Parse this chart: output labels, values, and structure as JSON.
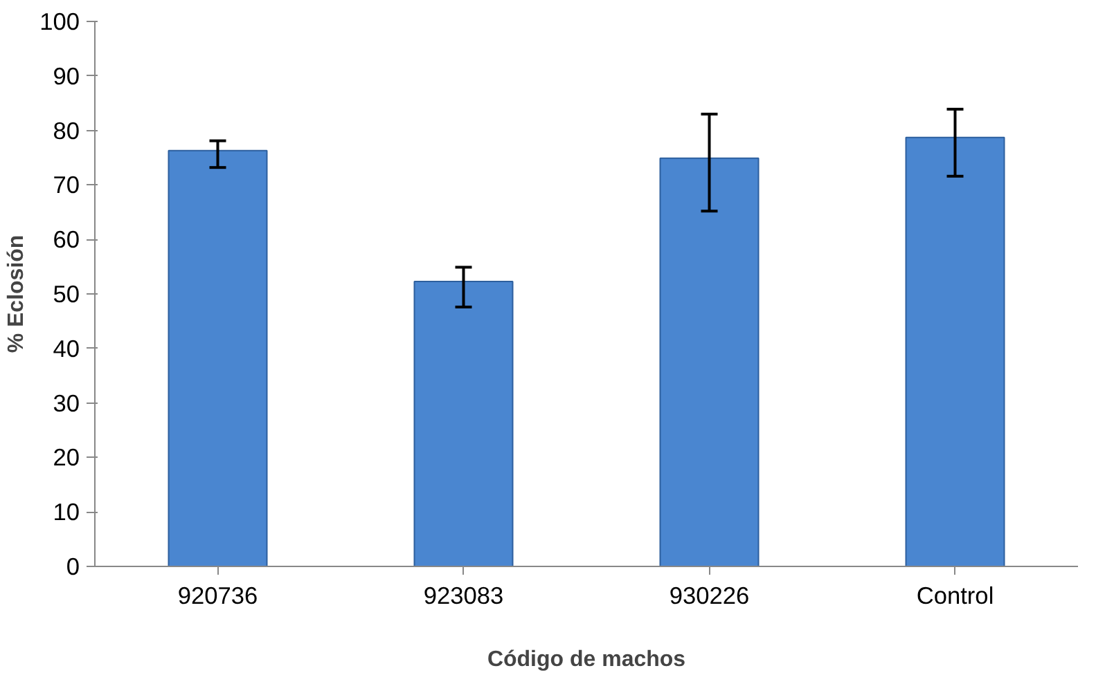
{
  "chart_data": {
    "type": "bar",
    "xlabel": "Código de machos",
    "ylabel": "% Eclosión",
    "categories": [
      "920736",
      "923083",
      "930226",
      "Control"
    ],
    "values": [
      76.3,
      52.3,
      74.9,
      78.7
    ],
    "color": "#4a86d0",
    "errors": [
      [
        73.2,
        78.1
      ],
      [
        47.6,
        54.9
      ],
      [
        65.2,
        83.0
      ],
      [
        71.6,
        83.9
      ]
    ],
    "ylim": [
      0,
      100
    ],
    "yticks": [
      0,
      10,
      20,
      30,
      40,
      50,
      60,
      70,
      80,
      90,
      100
    ],
    "grid": false
  }
}
